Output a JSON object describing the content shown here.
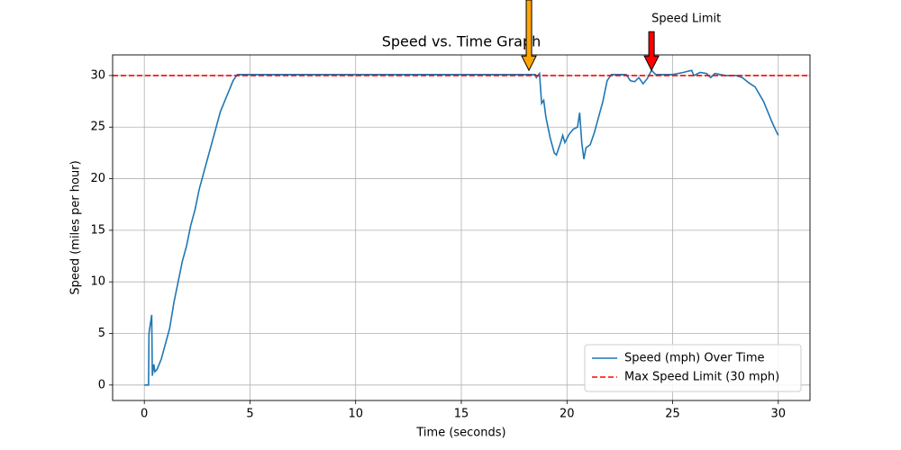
{
  "chart_data": {
    "type": "line",
    "title": "Speed vs. Time Graph",
    "x_label": "Time (seconds)",
    "y_label": "Speed (miles per hour)",
    "x": [
      0,
      0.2,
      0.22,
      0.35,
      0.38,
      0.45,
      0.5,
      0.6,
      0.8,
      1.0,
      1.2,
      1.4,
      1.6,
      1.8,
      2.0,
      2.2,
      2.4,
      2.6,
      2.8,
      3.0,
      3.2,
      3.4,
      3.6,
      3.8,
      4.0,
      4.2,
      4.4,
      18.5,
      18.55,
      18.7,
      18.8,
      18.9,
      19.0,
      19.2,
      19.4,
      19.5,
      19.7,
      19.8,
      19.9,
      20.1,
      20.3,
      20.5,
      20.6,
      20.7,
      20.8,
      20.9,
      21.1,
      21.3,
      21.5,
      21.7,
      21.9,
      22.1,
      22.8,
      23.0,
      23.2,
      23.4,
      23.6,
      23.8,
      24.0,
      24.2,
      25.0,
      25.5,
      25.9,
      26.0,
      26.3,
      26.6,
      26.8,
      27.0,
      27.5,
      28.0,
      28.3,
      28.6,
      28.9,
      29.1,
      29.3,
      29.5,
      29.7,
      29.9,
      30.0
    ],
    "series": [
      {
        "name": "Speed (mph) Over Time",
        "color": "#1f77b4",
        "values": [
          0,
          0,
          5,
          6.8,
          0.9,
          2,
          1.3,
          1.5,
          2.5,
          4,
          5.5,
          8,
          10,
          12,
          13.5,
          15.5,
          17,
          19,
          20.5,
          22,
          23.5,
          25,
          26.5,
          27.5,
          28.5,
          29.5,
          30.1,
          30.1,
          29.8,
          30.2,
          27.3,
          27.6,
          26,
          24,
          22.5,
          22.3,
          23.5,
          24.2,
          23.5,
          24.3,
          24.8,
          25,
          26.4,
          23.5,
          21.9,
          23,
          23.3,
          24.5,
          26,
          27.5,
          29.5,
          30.1,
          30.1,
          29.5,
          29.4,
          29.8,
          29.2,
          29.7,
          30.5,
          30.1,
          30.1,
          30.3,
          30.5,
          30,
          30.3,
          30.2,
          29.8,
          30.2,
          30,
          30,
          29.8,
          29.3,
          28.9,
          28.2,
          27.5,
          26.5,
          25.5,
          24.6,
          24.2
        ]
      }
    ],
    "hlines": [
      {
        "name": "Max Speed Limit (30 mph)",
        "value": 30,
        "color": "#ff0000"
      }
    ],
    "annotations": [
      {
        "xy": [
          18.2,
          30.5
        ],
        "color": "orange"
      },
      {
        "text": "Speed Limit",
        "xy": [
          24,
          30.5
        ],
        "color": "red"
      }
    ],
    "xlim": [
      -1.5,
      31.5
    ],
    "ylim": [
      -1.5,
      32
    ],
    "xticks": [
      0,
      5,
      10,
      15,
      20,
      25,
      30
    ],
    "yticks": [
      0,
      5,
      10,
      15,
      20,
      25,
      30
    ],
    "grid": true,
    "legend": "lower right"
  }
}
